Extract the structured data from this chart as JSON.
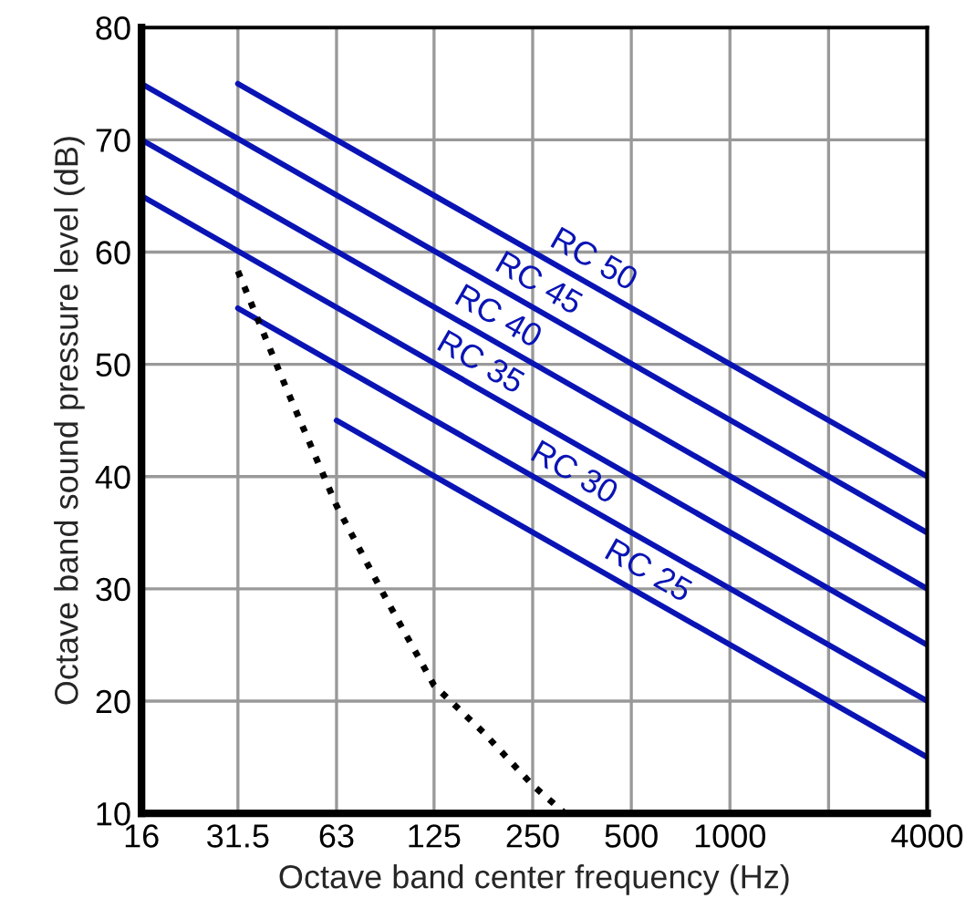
{
  "chart_data": {
    "type": "line",
    "xlabel": "Octave band center frequency (Hz)",
    "ylabel": "Octave band sound pressure level (dB)",
    "log": "x",
    "grid": true,
    "legend": false,
    "line_style": "solid",
    "marker": "none",
    "xlim": [
      16,
      4000
    ],
    "xticks": [
      16,
      31.5,
      63,
      125,
      250,
      500,
      1000,
      {
        "value": 2000,
        "label": null
      },
      4000
    ],
    "ylim": [
      10,
      80
    ],
    "yticks": [
      10,
      20,
      30,
      40,
      50,
      60,
      70,
      80
    ],
    "series": [
      {
        "name": "RC 50",
        "color": "#0a14b4",
        "x": [
          31.5,
          4000
        ],
        "values": [
          75,
          40
        ]
      },
      {
        "name": "RC 45",
        "color": "#0a14b4",
        "x": [
          16,
          4000
        ],
        "values": [
          75,
          35
        ]
      },
      {
        "name": "RC 40",
        "color": "#0a14b4",
        "x": [
          16,
          4000
        ],
        "values": [
          70,
          30
        ]
      },
      {
        "name": "RC 35",
        "color": "#0a14b4",
        "x": [
          16,
          4000
        ],
        "values": [
          65,
          25
        ]
      },
      {
        "name": "RC 30",
        "color": "#0a14b4",
        "x": [
          31.5,
          4000
        ],
        "values": [
          55,
          20
        ]
      },
      {
        "name": "RC 25",
        "color": "#0a14b4",
        "x": [
          63,
          4000
        ],
        "values": [
          45,
          15
        ]
      },
      {
        "color": "#000000",
        "line_style": "dotted",
        "x": [
          31.5,
          44.5,
          63,
          88.5,
          125,
          177,
          250,
          314
        ],
        "values": [
          58.3,
          47.7,
          37.4,
          29.3,
          21.4,
          17.2,
          12.5,
          10
        ]
      }
    ]
  }
}
